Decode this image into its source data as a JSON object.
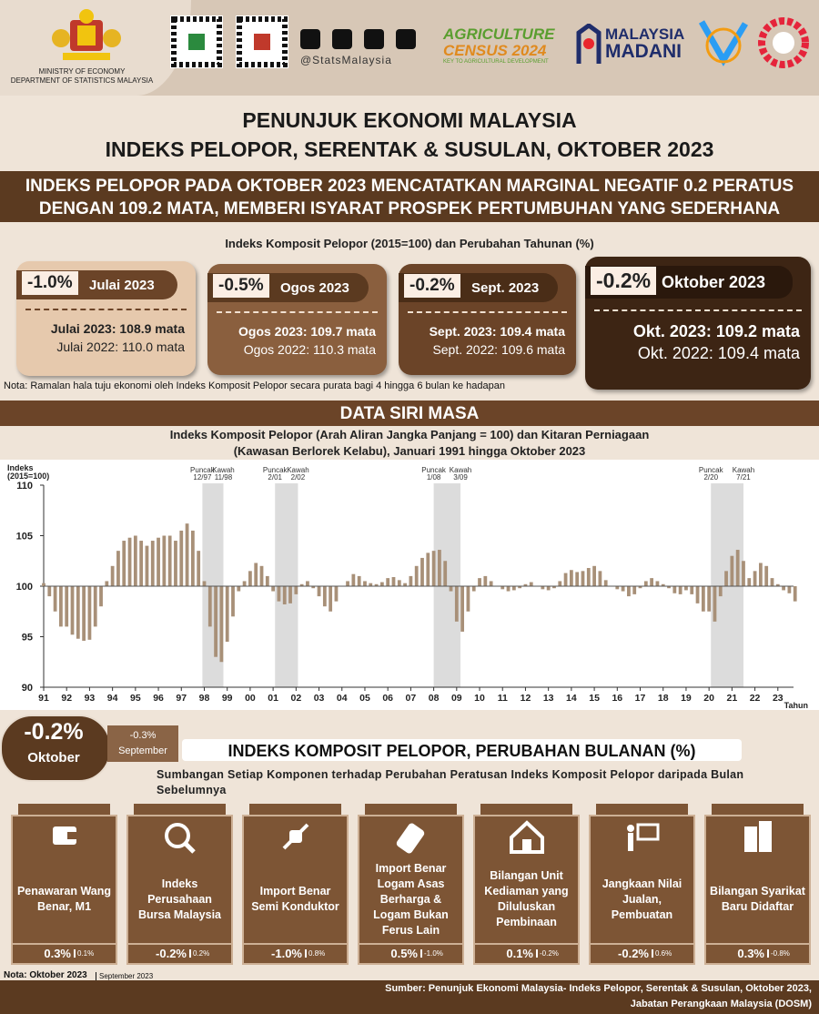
{
  "header": {
    "ministry": "MINISTRY OF ECONOMY",
    "department": "DEPARTMENT OF STATISTICS MALAYSIA",
    "social_handle": "@StatsMalaysia",
    "census": [
      "AGRICULTURE",
      "CENSUS 2024",
      "KEY TO AGRICULTURAL DEVELOPMENT"
    ],
    "madani": [
      "MALAYSIA",
      "MADANI"
    ]
  },
  "title": [
    "PENUNJUK EKONOMI MALAYSIA",
    "INDEKS PELOPOR, SERENTAK & SUSULAN, OKTOBER 2023"
  ],
  "headline": [
    "INDEKS PELOPOR PADA OKTOBER 2023 MENCATATKAN MARGINAL NEGATIF 0.2 PERATUS",
    "DENGAN 109.2 MATA, MEMBERI ISYARAT PROSPEK PERTUMBUHAN YANG SEDERHANA"
  ],
  "annual": {
    "heading": "Indeks Komposit Pelopor (2015=100) dan Perubahan Tahunan (%)",
    "cards": [
      {
        "change": "-1.0%",
        "period": "Julai 2023",
        "current": "Julai 2023: 108.9 mata",
        "previous": "Julai 2022: 110.0 mata"
      },
      {
        "change": "-0.5%",
        "period": "Ogos 2023",
        "current": "Ogos 2023: 109.7 mata",
        "previous": "Ogos 2022: 110.3 mata"
      },
      {
        "change": "-0.2%",
        "period": "Sept. 2023",
        "current": "Sept. 2023: 109.4 mata",
        "previous": "Sept. 2022: 109.6 mata"
      },
      {
        "change": "-0.2%",
        "period": "Oktober 2023",
        "current": "Okt. 2023: 109.2 mata",
        "previous": "Okt. 2022: 109.4 mata"
      }
    ],
    "note": "Nota: Ramalan hala tuju ekonomi oleh Indeks Komposit Pelopor secara purata bagi 4 hingga 6 bulan ke hadapan"
  },
  "time_series": {
    "heading": "DATA SIRI MASA"
  },
  "chart_data": {
    "type": "bar",
    "title": [
      "Indeks Komposit Pelopor (Arah Aliran Jangka Panjang = 100) dan Kitaran Perniagaan",
      "(Kawasan Berlorek Kelabu), Januari 1991 hingga Oktober 2023"
    ],
    "y_label": [
      "Indeks",
      "(2015=100)"
    ],
    "x_label": "Tahun",
    "baseline": 100,
    "color": "#a89078",
    "x": [
      1991,
      1991.25,
      1991.5,
      1991.75,
      1992,
      1992.25,
      1992.5,
      1992.75,
      1993,
      1993.25,
      1993.5,
      1993.75,
      1994,
      1994.25,
      1994.5,
      1994.75,
      1995,
      1995.25,
      1995.5,
      1995.75,
      1996,
      1996.25,
      1996.5,
      1996.75,
      1997,
      1997.25,
      1997.5,
      1997.75,
      1998,
      1998.25,
      1998.5,
      1998.75,
      1999,
      1999.25,
      1999.5,
      1999.75,
      2000,
      2000.25,
      2000.5,
      2000.75,
      2001,
      2001.25,
      2001.5,
      2001.75,
      2002,
      2002.25,
      2002.5,
      2002.75,
      2003,
      2003.25,
      2003.5,
      2003.75,
      2004,
      2004.25,
      2004.5,
      2004.75,
      2005,
      2005.25,
      2005.5,
      2005.75,
      2006,
      2006.25,
      2006.5,
      2006.75,
      2007,
      2007.25,
      2007.5,
      2007.75,
      2008,
      2008.25,
      2008.5,
      2008.75,
      2009,
      2009.25,
      2009.5,
      2009.75,
      2010,
      2010.25,
      2010.5,
      2010.75,
      2011,
      2011.25,
      2011.5,
      2011.75,
      2012,
      2012.25,
      2012.5,
      2012.75,
      2013,
      2013.25,
      2013.5,
      2013.75,
      2014,
      2014.25,
      2014.5,
      2014.75,
      2015,
      2015.25,
      2015.5,
      2015.75,
      2016,
      2016.25,
      2016.5,
      2016.75,
      2017,
      2017.25,
      2017.5,
      2017.75,
      2018,
      2018.25,
      2018.5,
      2018.75,
      2019,
      2019.25,
      2019.5,
      2019.75,
      2020,
      2020.25,
      2020.5,
      2020.75,
      2021,
      2021.25,
      2021.5,
      2021.75,
      2022,
      2022.25,
      2022.5,
      2022.75,
      2023,
      2023.25,
      2023.5,
      2023.75
    ],
    "values": [
      100.3,
      99,
      97.5,
      96,
      96,
      95.2,
      94.8,
      94.6,
      94.7,
      96,
      98,
      100.5,
      102,
      103.5,
      104.5,
      104.8,
      105,
      104.5,
      104,
      104.5,
      104.8,
      105,
      105,
      104.5,
      105.5,
      106.2,
      105.5,
      103.5,
      100.5,
      96,
      93,
      92.5,
      94.5,
      97,
      99.5,
      100.5,
      101.5,
      102.3,
      102,
      101,
      99.5,
      98.5,
      98.2,
      98.3,
      99.2,
      100.2,
      100.5,
      99.8,
      99,
      98,
      97.5,
      98.5,
      100,
      100.5,
      101.2,
      101,
      100.5,
      100.3,
      100.2,
      100.4,
      100.8,
      100.9,
      100.6,
      100.3,
      101,
      102,
      102.8,
      103.3,
      103.5,
      103.6,
      102.5,
      99.5,
      96.5,
      95.5,
      97.5,
      99.5,
      100.8,
      101,
      100.5,
      100,
      99.7,
      99.5,
      99.6,
      99.8,
      100.2,
      100.4,
      100,
      99.7,
      99.6,
      99.8,
      100.5,
      101.3,
      101.6,
      101.4,
      101.5,
      101.8,
      102,
      101.5,
      100.6,
      100,
      99.7,
      99.5,
      99,
      99.2,
      99.8,
      100.5,
      100.8,
      100.5,
      100.2,
      99.8,
      99.3,
      99.2,
      99.6,
      99.2,
      98.3,
      97.5,
      97.5,
      96.5,
      99,
      101.5,
      103,
      103.6,
      102.5,
      100.8,
      101.5,
      102.3,
      102,
      100.8,
      100.2,
      99.6,
      99.3,
      98.5
    ],
    "xlim": [
      1991,
      2024
    ],
    "ylim": [
      90,
      110
    ],
    "xticks": [
      {
        "value": 1991,
        "label": "91"
      },
      {
        "value": 1992,
        "label": "92"
      },
      {
        "value": 1993,
        "label": "93"
      },
      {
        "value": 1994,
        "label": "94"
      },
      {
        "value": 1995,
        "label": "95"
      },
      {
        "value": 1996,
        "label": "96"
      },
      {
        "value": 1997,
        "label": "97"
      },
      {
        "value": 1998,
        "label": "98"
      },
      {
        "value": 1999,
        "label": "99"
      },
      {
        "value": 2000,
        "label": "00"
      },
      {
        "value": 2001,
        "label": "01"
      },
      {
        "value": 2002,
        "label": "02"
      },
      {
        "value": 2003,
        "label": "03"
      },
      {
        "value": 2004,
        "label": "04"
      },
      {
        "value": 2005,
        "label": "05"
      },
      {
        "value": 2006,
        "label": "06"
      },
      {
        "value": 2007,
        "label": "07"
      },
      {
        "value": 2008,
        "label": "08"
      },
      {
        "value": 2009,
        "label": "09"
      },
      {
        "value": 2010,
        "label": "10"
      },
      {
        "value": 2011,
        "label": "11"
      },
      {
        "value": 2012,
        "label": "12"
      },
      {
        "value": 2013,
        "label": "13"
      },
      {
        "value": 2014,
        "label": "14"
      },
      {
        "value": 2015,
        "label": "15"
      },
      {
        "value": 2016,
        "label": "16"
      },
      {
        "value": 2017,
        "label": "17"
      },
      {
        "value": 2018,
        "label": "18"
      },
      {
        "value": 2019,
        "label": "19"
      },
      {
        "value": 2020,
        "label": "20"
      },
      {
        "value": 2021,
        "label": "21"
      },
      {
        "value": 2022,
        "label": "22"
      },
      {
        "value": 2023,
        "label": "23"
      }
    ],
    "yticks": [
      90,
      95,
      100,
      105,
      110
    ],
    "cycles": [
      {
        "peak_label": "Puncak",
        "peak": "12/97",
        "trough_label": "Kawah",
        "trough": "11/98",
        "start": 1997.917,
        "end": 1998.833
      },
      {
        "peak_label": "Puncak",
        "peak": "2/01",
        "trough_label": "Kawah",
        "trough": "2/02",
        "start": 2001.083,
        "end": 2002.083
      },
      {
        "peak_label": "Puncak",
        "peak": "1/08",
        "trough_label": "Kawah",
        "trough": "3/09",
        "start": 2008.0,
        "end": 2009.167
      },
      {
        "peak_label": "Puncak",
        "peak": "2/20",
        "trough_label": "Kawah",
        "trough": "7/21",
        "start": 2020.083,
        "end": 2021.5
      }
    ]
  },
  "monthly": {
    "current_change": "-0.2%",
    "current_month": "Oktober",
    "previous_change": "-0.3%",
    "previous_month": "September",
    "heading": "INDEKS KOMPOSIT PELOPOR, PERUBAHAN BULANAN (%)",
    "subheading": "Sumbangan Setiap Komponen terhadap Perubahan Peratusan Indeks Komposit Pelopor daripada Bulan Sebelumnya",
    "components": [
      {
        "label": "Penawaran Wang Benar, M1",
        "value": "0.3%",
        "previous": "0.1%"
      },
      {
        "label": "Indeks Perusahaan Bursa Malaysia",
        "value": "-0.2%",
        "previous": "0.2%"
      },
      {
        "label": "Import Benar Semi Konduktor",
        "value": "-1.0%",
        "previous": "0.8%"
      },
      {
        "label": "Import Benar Logam Asas Berharga & Logam Bukan Ferus Lain",
        "value": "0.5%",
        "previous": "-1.0%"
      },
      {
        "label": "Bilangan Unit Kediaman yang Diluluskan Pembinaan",
        "value": "0.1%",
        "previous": "-0.2%"
      },
      {
        "label": "Jangkaan Nilai Jualan, Pembuatan",
        "value": "-0.2%",
        "previous": "0.6%"
      },
      {
        "label": "Bilangan Syarikat Baru Didaftar",
        "value": "0.3%",
        "previous": "-0.8%"
      }
    ],
    "note": [
      "Nota: Oktober 2023",
      "September 2023"
    ]
  },
  "footer": [
    "Sumber: Penunjuk Ekonomi Malaysia- Indeks Pelopor, Serentak & Susulan, Oktober 2023,",
    "Jabatan Perangkaan Malaysia (DOSM)"
  ]
}
